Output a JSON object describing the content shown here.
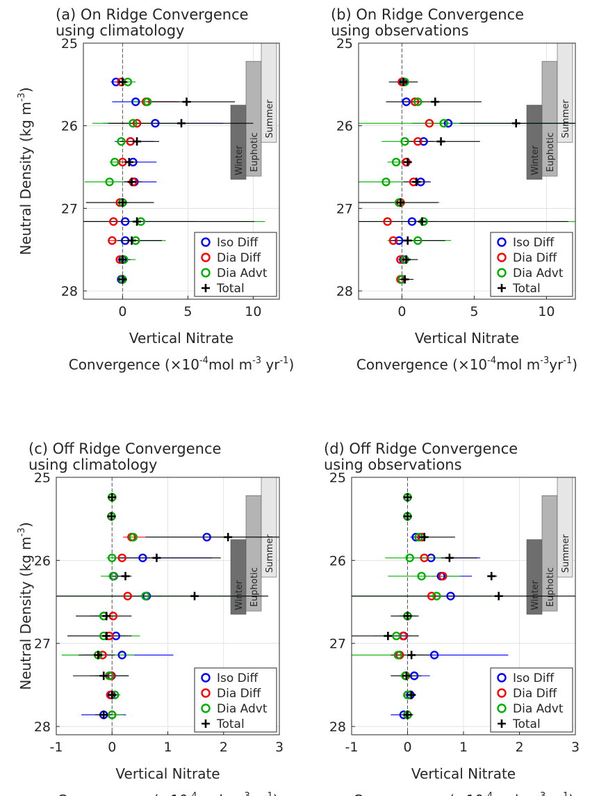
{
  "colors": {
    "iso": "#0000ff",
    "dia_diff": "#ff0000",
    "dia_advt": "#00b000",
    "total": "#000000",
    "grid": "#dedede",
    "winter": "#6e6e6e",
    "euphotic": "#b4b4b4",
    "summer": "#e6e6e6"
  },
  "ylabel_main": "Neutral Density (kg m",
  "ylabel_sup": "-3",
  "ylabel_end": ")",
  "xlabel_line1": "Vertical Nitrate",
  "xlabel_line2_pre": "Convergence (",
  "xlabel_times": "×10",
  "xlabel_sup1": "-4",
  "xlabel_mid": "mol m",
  "xlabel_sup2": "-3",
  "xlabel_mid_spaced": " yr",
  "xlabel_mid_nospace": "yr",
  "xlabel_sup3": "-1",
  "xlabel_end": ")",
  "chart_data": [
    {
      "type": "scatter",
      "panel": "a",
      "title_line1": "(a) On Ridge Convergence",
      "title_line2": "using climatology",
      "xlim": [
        -3,
        12
      ],
      "ylim": [
        25,
        28.1
      ],
      "xticks": [
        "0",
        "5",
        "10"
      ],
      "yticks": [
        "25",
        "26",
        "27",
        "28"
      ],
      "y": [
        25.47,
        25.71,
        25.97,
        26.19,
        26.44,
        26.68,
        26.93,
        27.16,
        27.39,
        27.62,
        27.86
      ],
      "series": [
        {
          "name": "Iso Diff",
          "marker": "circle",
          "values": [
            -0.5,
            1.0,
            2.5,
            0.6,
            0.8,
            0.9,
            0.0,
            0.2,
            0.2,
            0.0,
            -0.1
          ],
          "err_lo": [
            -0.9,
            -0.8,
            -1.5,
            -0.6,
            -0.6,
            -0.8,
            -0.5,
            -3.0,
            -0.5,
            -0.2,
            -0.4
          ],
          "err_hi": [
            -0.1,
            4.3,
            7.7,
            2.4,
            2.6,
            2.6,
            0.5,
            5.6,
            3.0,
            0.3,
            0.2
          ]
        },
        {
          "name": "Dia Diff",
          "marker": "circle",
          "values": [
            -0.1,
            1.8,
            1.1,
            0.6,
            0.0,
            0.8,
            -0.2,
            -0.7,
            -0.8,
            -0.2,
            0.0
          ],
          "err_lo": [
            -0.3,
            1.2,
            -0.8,
            0.0,
            -0.3,
            0.0,
            -0.5,
            -1.0,
            -1.0,
            -0.4,
            -0.2
          ],
          "err_hi": [
            0.1,
            4.1,
            3.0,
            1.0,
            0.3,
            1.5,
            0.1,
            0.4,
            -0.6,
            0.0,
            0.2
          ]
        },
        {
          "name": "Dia Advt",
          "marker": "circle",
          "values": [
            0.4,
            1.9,
            0.8,
            -0.1,
            -0.6,
            -1.0,
            0.0,
            1.4,
            1.0,
            0.1,
            0.0
          ],
          "err_lo": [
            -0.2,
            0.6,
            -2.3,
            -0.4,
            -1.0,
            -2.9,
            -2.8,
            -3.0,
            -0.5,
            -0.2,
            -0.2
          ],
          "err_hi": [
            1.0,
            2.5,
            3.8,
            0.2,
            -0.1,
            0.8,
            2.4,
            10.9,
            3.3,
            1.0,
            0.3
          ]
        },
        {
          "name": "Total",
          "marker": "plus",
          "values": [
            0.0,
            4.9,
            4.5,
            1.1,
            0.5,
            0.7,
            0.0,
            1.1,
            0.7,
            0.0,
            0.0
          ],
          "err_lo": [
            -0.4,
            1.9,
            -1.1,
            -0.2,
            0.1,
            0.1,
            -2.8,
            -3.0,
            -0.4,
            -0.2,
            -0.2
          ],
          "err_hi": [
            0.4,
            8.6,
            10.0,
            2.8,
            1.2,
            1.5,
            2.4,
            10.1,
            3.0,
            0.6,
            0.2
          ]
        }
      ],
      "seasons": [
        {
          "label": "Winter",
          "ytop": 25.75,
          "ybot": 26.65
        },
        {
          "label": "Euphotic",
          "ytop": 25.22,
          "ybot": 26.61
        },
        {
          "label": "Summer",
          "ytop": 25.0,
          "ybot": 26.2
        }
      ],
      "legend": "bottom-right",
      "grid": true
    },
    {
      "type": "scatter",
      "panel": "b",
      "title_line1": "(b) On Ridge Convergence",
      "title_line2": "using observations",
      "xlim": [
        -3,
        12
      ],
      "ylim": [
        25,
        28.1
      ],
      "xticks": [
        "0",
        "5",
        "10"
      ],
      "yticks": [
        "25",
        "26",
        "27",
        "28"
      ],
      "y": [
        25.47,
        25.71,
        25.97,
        26.19,
        26.44,
        26.68,
        26.93,
        27.16,
        27.39,
        27.62,
        27.86
      ],
      "series": [
        {
          "name": "Iso Diff",
          "marker": "circle",
          "values": [
            0.1,
            0.3,
            3.2,
            1.5,
            0.3,
            1.3,
            -0.1,
            0.7,
            -0.2,
            0.1,
            0.0
          ],
          "err_lo": [
            -0.1,
            0.0,
            0.7,
            0.6,
            0.0,
            0.5,
            -0.3,
            -1.0,
            -0.8,
            -0.1,
            -0.2
          ],
          "err_hi": [
            0.3,
            1.0,
            12.0,
            2.2,
            0.6,
            2.0,
            0.1,
            2.4,
            0.5,
            0.5,
            0.2
          ]
        },
        {
          "name": "Dia Diff",
          "marker": "circle",
          "values": [
            0.0,
            0.9,
            1.9,
            1.1,
            0.3,
            0.8,
            -0.1,
            -1.0,
            -0.6,
            -0.1,
            -0.1
          ],
          "err_lo": [
            -0.2,
            0.5,
            0.8,
            0.4,
            0.1,
            0.3,
            -0.3,
            -1.3,
            -0.9,
            -0.3,
            -0.3
          ],
          "err_hi": [
            0.2,
            1.4,
            3.0,
            1.8,
            0.5,
            1.3,
            0.1,
            -0.7,
            -0.3,
            0.1,
            0.1
          ]
        },
        {
          "name": "Dia Advt",
          "marker": "circle",
          "values": [
            0.2,
            1.1,
            2.9,
            0.2,
            -0.4,
            -1.1,
            -0.2,
            1.5,
            1.1,
            0.2,
            0.0
          ],
          "err_lo": [
            -0.1,
            0.6,
            -3.0,
            -1.4,
            -1.0,
            -3.0,
            -3.0,
            -3.0,
            -1.0,
            -0.2,
            -0.2
          ],
          "err_hi": [
            0.4,
            1.5,
            12.0,
            1.8,
            0.2,
            1.2,
            2.6,
            12.0,
            3.4,
            0.7,
            0.3
          ]
        },
        {
          "name": "Total",
          "marker": "plus",
          "values": [
            0.1,
            2.3,
            7.9,
            2.7,
            0.4,
            1.0,
            -0.1,
            1.4,
            0.4,
            0.3,
            0.2
          ],
          "err_lo": [
            -0.9,
            -1.1,
            4.0,
            0.2,
            0.2,
            0.1,
            -3.0,
            -3.0,
            -0.8,
            -0.1,
            -0.2
          ],
          "err_hi": [
            1.1,
            5.5,
            12.0,
            5.4,
            0.6,
            1.9,
            2.5,
            11.5,
            3.0,
            1.1,
            0.8
          ]
        }
      ],
      "seasons": [
        {
          "label": "Winter",
          "ytop": 25.75,
          "ybot": 26.65
        },
        {
          "label": "Euphotic",
          "ytop": 25.22,
          "ybot": 26.61
        },
        {
          "label": "Summer",
          "ytop": 25.0,
          "ybot": 26.2
        }
      ],
      "legend": "bottom-right",
      "grid": true
    },
    {
      "type": "scatter",
      "panel": "c",
      "title_line1": "(c) Off Ridge Convergence",
      "title_line2": "using climatology",
      "xlim": [
        -1,
        3
      ],
      "ylim": [
        25,
        28.1
      ],
      "xticks": [
        "-1",
        "0",
        "1",
        "2",
        "3"
      ],
      "yticks": [
        "25",
        "26",
        "27",
        "28"
      ],
      "y": [
        25.24,
        25.47,
        25.72,
        25.97,
        26.19,
        26.43,
        26.67,
        26.91,
        27.14,
        27.39,
        27.62,
        27.86
      ],
      "series": [
        {
          "name": "Iso Diff",
          "marker": "circle",
          "values": [
            0.0,
            -0.01,
            1.7,
            0.55,
            0.03,
            0.62,
            -0.15,
            0.07,
            0.18,
            -0.01,
            -0.01,
            -0.15
          ],
          "err_lo": [
            -0.02,
            -0.03,
            0.6,
            0.0,
            -0.08,
            0.3,
            -0.3,
            -0.1,
            -0.5,
            -0.3,
            -0.08,
            -0.55
          ],
          "err_hi": [
            0.02,
            0.01,
            3.0,
            1.8,
            0.14,
            0.9,
            0.0,
            0.25,
            1.1,
            0.28,
            0.06,
            0.25
          ]
        },
        {
          "name": "Dia Diff",
          "marker": "circle",
          "values": [
            0.0,
            -0.01,
            0.35,
            0.18,
            0.02,
            0.28,
            0.02,
            -0.05,
            -0.17,
            -0.02,
            -0.03,
            0.0
          ],
          "err_lo": [
            -0.02,
            -0.03,
            0.2,
            0.08,
            -0.08,
            0.2,
            -0.05,
            -0.15,
            -0.3,
            -0.1,
            -0.07,
            -0.1
          ],
          "err_hi": [
            0.02,
            0.01,
            0.6,
            0.28,
            0.12,
            0.38,
            0.09,
            0.05,
            -0.04,
            0.06,
            0.01,
            0.1
          ]
        },
        {
          "name": "Dia Advt",
          "marker": "circle",
          "values": [
            0.0,
            -0.01,
            0.38,
            0.0,
            0.02,
            0.6,
            -0.15,
            -0.15,
            -0.25,
            -0.05,
            0.05,
            0.0
          ],
          "err_lo": [
            -0.02,
            -0.03,
            0.3,
            -0.1,
            -0.2,
            -1.0,
            -0.4,
            -0.8,
            -0.9,
            -0.4,
            -0.05,
            -0.2
          ],
          "err_hi": [
            0.02,
            0.01,
            0.46,
            0.1,
            0.24,
            2.2,
            0.1,
            0.5,
            0.4,
            0.3,
            0.15,
            0.2
          ]
        },
        {
          "name": "Total",
          "marker": "plus",
          "values": [
            0.0,
            -0.01,
            2.08,
            0.8,
            0.24,
            1.48,
            -0.1,
            -0.1,
            -0.25,
            -0.15,
            0.0,
            -0.15
          ],
          "err_lo": [
            -0.02,
            -0.03,
            0.6,
            0.1,
            0.0,
            -1.0,
            -0.65,
            -0.8,
            -0.6,
            -0.7,
            -0.1,
            -0.3
          ],
          "err_hi": [
            0.02,
            0.01,
            3.0,
            1.95,
            0.35,
            2.8,
            0.35,
            0.35,
            0.05,
            0.3,
            0.1,
            0.0
          ]
        }
      ],
      "seasons": [
        {
          "label": "Winter",
          "ytop": 25.75,
          "ybot": 26.65
        },
        {
          "label": "Euphotic",
          "ytop": 25.22,
          "ybot": 26.61
        },
        {
          "label": "Summer",
          "ytop": 25.0,
          "ybot": 26.2
        }
      ],
      "legend": "bottom-right",
      "grid": true
    },
    {
      "type": "scatter",
      "panel": "d",
      "title_line1": "(d) Off Ridge Convergence",
      "title_line2": "using observations",
      "xlim": [
        -1,
        3
      ],
      "ylim": [
        25,
        28.1
      ],
      "xticks": [
        "-1",
        "0",
        "1",
        "2",
        "3"
      ],
      "yticks": [
        "25",
        "26",
        "27",
        "28"
      ],
      "y": [
        25.24,
        25.47,
        25.72,
        25.97,
        26.19,
        26.43,
        26.67,
        26.91,
        27.14,
        27.39,
        27.62,
        27.86
      ],
      "series": [
        {
          "name": "Iso Diff",
          "marker": "circle",
          "values": [
            0.0,
            0.0,
            0.15,
            0.42,
            0.6,
            0.77,
            0.0,
            -0.07,
            0.48,
            0.12,
            0.05,
            -0.07
          ],
          "err_lo": [
            -0.02,
            -0.02,
            0.05,
            0.1,
            0.3,
            0.3,
            -0.1,
            -0.2,
            0.1,
            -0.1,
            -0.05,
            -0.3
          ],
          "err_hi": [
            0.02,
            0.02,
            0.3,
            1.3,
            1.15,
            1.1,
            0.1,
            0.05,
            1.8,
            0.4,
            0.15,
            0.1
          ]
        },
        {
          "name": "Dia Diff",
          "marker": "circle",
          "values": [
            0.0,
            0.0,
            0.25,
            0.3,
            0.63,
            0.43,
            0.0,
            -0.08,
            -0.14,
            -0.03,
            0.0,
            0.0
          ],
          "err_lo": [
            -0.02,
            -0.02,
            0.15,
            0.2,
            0.5,
            0.3,
            -0.1,
            -0.2,
            -0.25,
            -0.15,
            -0.05,
            -0.05
          ],
          "err_hi": [
            0.02,
            0.02,
            0.35,
            0.4,
            0.75,
            0.55,
            0.1,
            0.04,
            -0.03,
            0.09,
            0.05,
            0.05
          ]
        },
        {
          "name": "Dia Advt",
          "marker": "circle",
          "values": [
            0.0,
            0.0,
            0.2,
            0.04,
            0.25,
            0.52,
            0.0,
            -0.2,
            -0.17,
            -0.04,
            0.0,
            0.0
          ],
          "err_lo": [
            -0.02,
            -0.02,
            0.1,
            -0.4,
            -0.35,
            -1.0,
            -0.15,
            -0.6,
            -1.0,
            -0.3,
            -0.05,
            -0.05
          ],
          "err_hi": [
            0.02,
            0.02,
            0.3,
            0.7,
            0.95,
            1.5,
            0.15,
            0.2,
            0.3,
            0.2,
            0.05,
            0.05
          ]
        },
        {
          "name": "Total",
          "marker": "plus",
          "values": [
            0.0,
            0.0,
            0.3,
            0.75,
            1.5,
            1.63,
            0.0,
            -0.35,
            0.07,
            -0.02,
            0.07,
            0.0
          ],
          "err_lo": [
            -0.02,
            -0.02,
            0.1,
            0.6,
            1.45,
            -1.0,
            -0.3,
            -1.0,
            -0.3,
            -0.3,
            0.0,
            -0.1
          ],
          "err_hi": [
            0.02,
            0.02,
            0.85,
            1.25,
            1.6,
            3.0,
            0.2,
            0.2,
            0.45,
            0.25,
            0.14,
            0.1
          ]
        }
      ],
      "seasons": [
        {
          "label": "Winter",
          "ytop": 25.75,
          "ybot": 26.65
        },
        {
          "label": "Euphotic",
          "ytop": 25.22,
          "ybot": 26.61
        },
        {
          "label": "Summer",
          "ytop": 25.0,
          "ybot": 26.2
        }
      ],
      "legend": "bottom-right",
      "grid": true
    }
  ]
}
